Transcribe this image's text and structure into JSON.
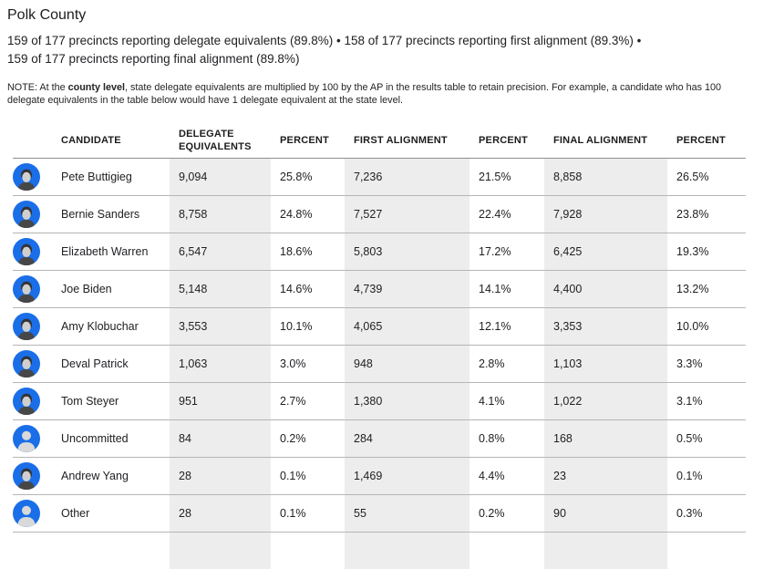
{
  "page": {
    "title": "Polk County",
    "reporting": {
      "line1": "159 of 177 precincts reporting delegate equivalents (89.8%) • 158 of 177 precincts reporting first alignment (89.3%) •",
      "line2": "159 of 177 precincts reporting final alignment (89.8%)"
    },
    "note": {
      "prefix": "NOTE: At the ",
      "bold": "county level",
      "suffix": ", state delegate equivalents are multiplied by 100 by the AP in the results table to retain precision. For example, a candidate who has 100 delegate equivalents in the table below would have 1 delegate equivalent at the state level."
    }
  },
  "table": {
    "headers": [
      "CANDIDATE",
      "DELEGATE EQUIVALENTS",
      "PERCENT",
      "FIRST ALIGNMENT",
      "PERCENT",
      "FINAL ALIGNMENT",
      "PERCENT"
    ],
    "rows": [
      {
        "candidate": "Pete Buttigieg",
        "avatar": "photo",
        "delegate_equivalents": "9,094",
        "de_percent": "25.8%",
        "first_alignment": "7,236",
        "fa_percent": "21.5%",
        "final_alignment": "8,858",
        "fin_percent": "26.5%"
      },
      {
        "candidate": "Bernie Sanders",
        "avatar": "photo",
        "delegate_equivalents": "8,758",
        "de_percent": "24.8%",
        "first_alignment": "7,527",
        "fa_percent": "22.4%",
        "final_alignment": "7,928",
        "fin_percent": "23.8%"
      },
      {
        "candidate": "Elizabeth Warren",
        "avatar": "photo",
        "delegate_equivalents": "6,547",
        "de_percent": "18.6%",
        "first_alignment": "5,803",
        "fa_percent": "17.2%",
        "final_alignment": "6,425",
        "fin_percent": "19.3%"
      },
      {
        "candidate": "Joe Biden",
        "avatar": "photo",
        "delegate_equivalents": "5,148",
        "de_percent": "14.6%",
        "first_alignment": "4,739",
        "fa_percent": "14.1%",
        "final_alignment": "4,400",
        "fin_percent": "13.2%"
      },
      {
        "candidate": "Amy Klobuchar",
        "avatar": "photo",
        "delegate_equivalents": "3,553",
        "de_percent": "10.1%",
        "first_alignment": "4,065",
        "fa_percent": "12.1%",
        "final_alignment": "3,353",
        "fin_percent": "10.0%"
      },
      {
        "candidate": "Deval Patrick",
        "avatar": "photo",
        "delegate_equivalents": "1,063",
        "de_percent": "3.0%",
        "first_alignment": "948",
        "fa_percent": "2.8%",
        "final_alignment": "1,103",
        "fin_percent": "3.3%"
      },
      {
        "candidate": "Tom Steyer",
        "avatar": "photo",
        "delegate_equivalents": "951",
        "de_percent": "2.7%",
        "first_alignment": "1,380",
        "fa_percent": "4.1%",
        "final_alignment": "1,022",
        "fin_percent": "3.1%"
      },
      {
        "candidate": "Uncommitted",
        "avatar": "generic",
        "delegate_equivalents": "84",
        "de_percent": "0.2%",
        "first_alignment": "284",
        "fa_percent": "0.8%",
        "final_alignment": "168",
        "fin_percent": "0.5%"
      },
      {
        "candidate": "Andrew Yang",
        "avatar": "photo",
        "delegate_equivalents": "28",
        "de_percent": "0.1%",
        "first_alignment": "1,469",
        "fa_percent": "4.4%",
        "final_alignment": "23",
        "fin_percent": "0.1%"
      },
      {
        "candidate": "Other",
        "avatar": "generic",
        "delegate_equivalents": "28",
        "de_percent": "0.1%",
        "first_alignment": "55",
        "fa_percent": "0.2%",
        "final_alignment": "90",
        "fin_percent": "0.3%"
      }
    ]
  },
  "colors": {
    "accent_blue": "#1a6ee8",
    "shaded_column": "#ededed",
    "row_divider": "#b5b5b5",
    "header_divider": "#8f8f8f"
  }
}
